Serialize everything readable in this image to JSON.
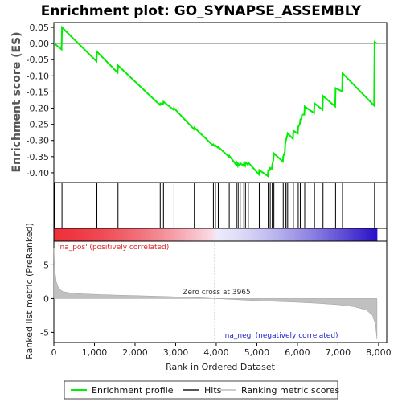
{
  "chart_data": {
    "type": "line",
    "title": "Enrichment plot: GO_SYNAPSE_ASSEMBLY",
    "ylabel": "Enrichment score (ES)",
    "ylabel_bottom": "Ranked list metric (PreRanked)",
    "xlabel": "Rank in Ordered Dataset",
    "xlim": [
      0,
      8200
    ],
    "ylim": [
      -0.43,
      0.065
    ],
    "ylim_bottom": [
      -6.5,
      8.5
    ],
    "x_ticks": [
      0,
      1000,
      2000,
      3000,
      4000,
      5000,
      6000,
      7000,
      8000
    ],
    "x_tick_labels": [
      "0",
      "1,000",
      "2,000",
      "3,000",
      "4,000",
      "5,000",
      "6,000",
      "7,000",
      "8,000"
    ],
    "y_ticks": [
      0.05,
      0.0,
      -0.05,
      -0.1,
      -0.15,
      -0.2,
      -0.25,
      -0.3,
      -0.35,
      -0.4
    ],
    "y_tick_labels": [
      "0.05",
      "0.00",
      "-0.05",
      "-0.10",
      "-0.15",
      "-0.20",
      "-0.25",
      "-0.30",
      "-0.35",
      "-0.40"
    ],
    "y_ticks_bottom": [
      5,
      0,
      -5
    ],
    "y_tick_labels_bottom": [
      "5",
      "0",
      "-5"
    ],
    "hits": [
      10,
      200,
      1060,
      1580,
      2620,
      2700,
      2960,
      3460,
      3930,
      3980,
      4050,
      4320,
      4500,
      4540,
      4590,
      4680,
      4720,
      4790,
      5060,
      5280,
      5330,
      5380,
      5420,
      5650,
      5700,
      5720,
      5760,
      5900,
      6020,
      6070,
      6110,
      6180,
      6420,
      6630,
      6940,
      7110,
      7900
    ],
    "es_x": [
      0,
      10,
      190,
      200,
      1050,
      1060,
      1570,
      1580,
      2610,
      2620,
      2690,
      2700,
      2950,
      2960,
      3450,
      3460,
      3920,
      3930,
      3970,
      3980,
      4040,
      4050,
      4310,
      4320,
      4490,
      4500,
      4530,
      4540,
      4580,
      4590,
      4670,
      4680,
      4710,
      4720,
      4780,
      4790,
      5050,
      5060,
      5270,
      5280,
      5320,
      5330,
      5370,
      5380,
      5410,
      5420,
      5640,
      5650,
      5690,
      5700,
      5710,
      5720,
      5750,
      5760,
      5890,
      5900,
      6010,
      6020,
      6060,
      6070,
      6100,
      6110,
      6170,
      6180,
      6410,
      6420,
      6620,
      6630,
      6930,
      6940,
      7100,
      7110,
      7890,
      7900,
      7960
    ],
    "es_y": [
      0.0,
      0.0,
      -0.018,
      0.05,
      -0.055,
      -0.025,
      -0.09,
      -0.068,
      -0.19,
      -0.185,
      -0.188,
      -0.18,
      -0.205,
      -0.2,
      -0.265,
      -0.26,
      -0.315,
      -0.312,
      -0.318,
      -0.315,
      -0.322,
      -0.32,
      -0.35,
      -0.347,
      -0.375,
      -0.368,
      -0.378,
      -0.372,
      -0.378,
      -0.37,
      -0.378,
      -0.372,
      -0.378,
      -0.368,
      -0.375,
      -0.368,
      -0.405,
      -0.392,
      -0.41,
      -0.392,
      -0.392,
      -0.385,
      -0.388,
      -0.375,
      -0.36,
      -0.34,
      -0.365,
      -0.35,
      -0.335,
      -0.31,
      -0.305,
      -0.298,
      -0.285,
      -0.278,
      -0.295,
      -0.27,
      -0.278,
      -0.258,
      -0.248,
      -0.235,
      -0.232,
      -0.22,
      -0.22,
      -0.195,
      -0.215,
      -0.185,
      -0.205,
      -0.162,
      -0.195,
      -0.138,
      -0.148,
      -0.092,
      -0.192,
      0.005,
      0.0
    ],
    "metric_x": [
      0,
      20,
      60,
      120,
      220,
      400,
      700,
      1100,
      1600,
      2200,
      2800,
      3300,
      3700,
      3965,
      4300,
      4800,
      5400,
      6000,
      6500,
      7000,
      7400,
      7700,
      7850,
      7920,
      7960
    ],
    "metric_y": [
      7.5,
      4.5,
      2.5,
      1.5,
      1.05,
      0.85,
      0.7,
      0.6,
      0.5,
      0.4,
      0.3,
      0.2,
      0.1,
      0.0,
      -0.1,
      -0.25,
      -0.4,
      -0.55,
      -0.7,
      -0.9,
      -1.2,
      -1.7,
      -2.5,
      -3.8,
      -6.0
    ],
    "zero_cross_rank": 3965,
    "annotations": {
      "zero_cross": "Zero cross at 3965",
      "pos": "'na_pos' (positively correlated)",
      "neg": "'na_neg' (negatively correlated)"
    },
    "legend": [
      {
        "name": "Enrichment profile",
        "color": "#00ee00"
      },
      {
        "name": "Hits",
        "color": "#555555"
      },
      {
        "name": "Ranking metric scores",
        "color": "#cccccc"
      }
    ],
    "colors": {
      "es_line": "#00ee00",
      "hits": "#000000",
      "metric": "#c0c0c0",
      "pos_text": "#dd2222",
      "neg_text": "#2222cc",
      "heat_pos": "#ee3344",
      "heat_neg": "#2211cc"
    }
  }
}
